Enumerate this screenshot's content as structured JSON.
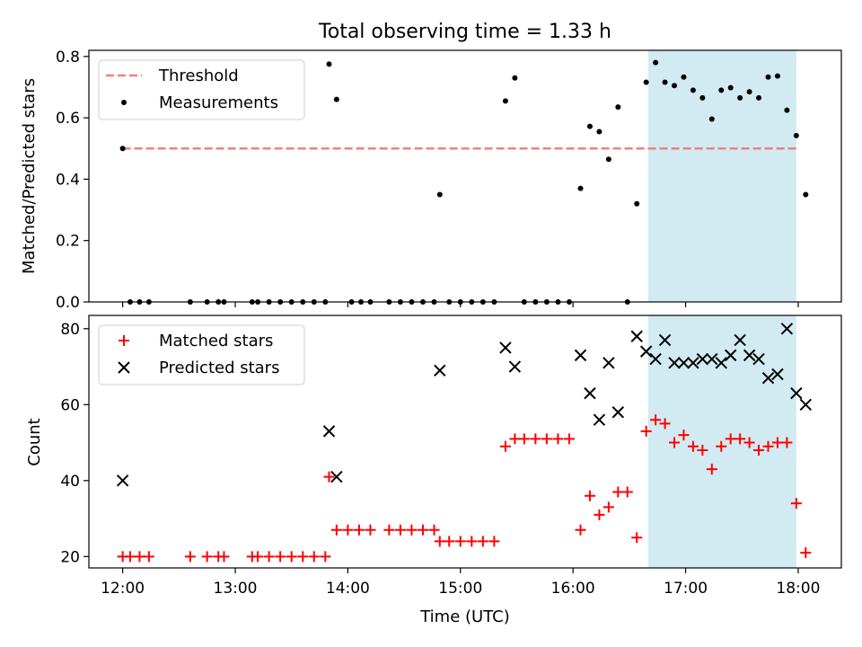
{
  "chart_data": [
    {
      "type": "scatter",
      "title": "Total observing time = 1.33 h",
      "xlabel": "",
      "ylabel": "Matched/Predicted stars",
      "xlim": [
        "11:42",
        "18:23"
      ],
      "ylim": [
        0,
        0.82
      ],
      "yticks": [
        0.0,
        0.2,
        0.4,
        0.6,
        0.8
      ],
      "ytick_labels": [
        "0.0",
        "0.2",
        "0.4",
        "0.6",
        "0.8"
      ],
      "shaded_region": {
        "x0": "16:40",
        "x1": "17:59",
        "color": "#add8e6"
      },
      "legend": {
        "position": "top-left",
        "entries": [
          "Threshold",
          "Measurements"
        ]
      },
      "series": [
        {
          "name": "Threshold",
          "kind": "dashed-line",
          "color": "#f08080",
          "points": [
            [
              "12:00",
              0.5
            ],
            [
              "18:00",
              0.5
            ]
          ]
        },
        {
          "name": "Measurements",
          "kind": "dot",
          "color": "#000000",
          "points": [
            [
              "12:00",
              0.5
            ],
            [
              "12:04",
              0.0
            ],
            [
              "12:09",
              0.0
            ],
            [
              "12:14",
              0.0
            ],
            [
              "12:36",
              0.0
            ],
            [
              "12:45",
              0.0
            ],
            [
              "12:51",
              0.0
            ],
            [
              "12:54",
              0.0
            ],
            [
              "13:09",
              0.0
            ],
            [
              "13:12",
              0.0
            ],
            [
              "13:18",
              0.0
            ],
            [
              "13:24",
              0.0
            ],
            [
              "13:30",
              0.0
            ],
            [
              "13:36",
              0.0
            ],
            [
              "13:42",
              0.0
            ],
            [
              "13:48",
              0.0
            ],
            [
              "13:50",
              0.775
            ],
            [
              "13:54",
              0.66
            ],
            [
              "14:02",
              0.0
            ],
            [
              "14:07",
              0.0
            ],
            [
              "14:12",
              0.0
            ],
            [
              "14:22",
              0.0
            ],
            [
              "14:28",
              0.0
            ],
            [
              "14:34",
              0.0
            ],
            [
              "14:40",
              0.0
            ],
            [
              "14:46",
              0.0
            ],
            [
              "14:49",
              0.35
            ],
            [
              "14:54",
              0.0
            ],
            [
              "15:00",
              0.0
            ],
            [
              "15:06",
              0.0
            ],
            [
              "15:12",
              0.0
            ],
            [
              "15:18",
              0.0
            ],
            [
              "15:24",
              0.655
            ],
            [
              "15:29",
              0.73
            ],
            [
              "15:34",
              0.0
            ],
            [
              "15:40",
              0.0
            ],
            [
              "15:46",
              0.0
            ],
            [
              "15:52",
              0.0
            ],
            [
              "15:58",
              0.0
            ],
            [
              "16:04",
              0.37
            ],
            [
              "16:09",
              0.572
            ],
            [
              "16:14",
              0.555
            ],
            [
              "16:19",
              0.465
            ],
            [
              "16:24",
              0.635
            ],
            [
              "16:29",
              0.0
            ],
            [
              "16:34",
              0.32
            ],
            [
              "16:39",
              0.716
            ],
            [
              "16:44",
              0.78
            ],
            [
              "16:49",
              0.716
            ],
            [
              "16:54",
              0.705
            ],
            [
              "16:59",
              0.733
            ],
            [
              "17:04",
              0.69
            ],
            [
              "17:09",
              0.665
            ],
            [
              "17:14",
              0.596
            ],
            [
              "17:19",
              0.69
            ],
            [
              "17:24",
              0.698
            ],
            [
              "17:29",
              0.665
            ],
            [
              "17:34",
              0.685
            ],
            [
              "17:39",
              0.665
            ],
            [
              "17:44",
              0.733
            ],
            [
              "17:49",
              0.736
            ],
            [
              "17:54",
              0.625
            ],
            [
              "17:59",
              0.542
            ],
            [
              "18:04",
              0.35
            ]
          ]
        }
      ]
    },
    {
      "type": "scatter",
      "title": "",
      "xlabel": "Time (UTC)",
      "ylabel": "Count",
      "xlim": [
        "11:42",
        "18:23"
      ],
      "ylim": [
        17,
        83.5
      ],
      "yticks": [
        20,
        40,
        60,
        80
      ],
      "ytick_labels": [
        "20",
        "40",
        "60",
        "80"
      ],
      "xticks": [
        "12:00",
        "13:00",
        "14:00",
        "15:00",
        "16:00",
        "17:00",
        "18:00"
      ],
      "xtick_labels": [
        "12:00",
        "13:00",
        "14:00",
        "15:00",
        "16:00",
        "17:00",
        "18:00"
      ],
      "shaded_region": {
        "x0": "16:40",
        "x1": "17:59",
        "color": "#add8e6"
      },
      "legend": {
        "position": "top-left",
        "entries": [
          "Matched stars",
          "Predicted stars"
        ]
      },
      "series": [
        {
          "name": "Matched stars",
          "kind": "plus",
          "color": "#ff0000",
          "points": [
            [
              "12:00",
              20
            ],
            [
              "12:04",
              20
            ],
            [
              "12:09",
              20
            ],
            [
              "12:14",
              20
            ],
            [
              "12:36",
              20
            ],
            [
              "12:45",
              20
            ],
            [
              "12:51",
              20
            ],
            [
              "12:54",
              20
            ],
            [
              "13:09",
              20
            ],
            [
              "13:12",
              20
            ],
            [
              "13:18",
              20
            ],
            [
              "13:24",
              20
            ],
            [
              "13:30",
              20
            ],
            [
              "13:36",
              20
            ],
            [
              "13:42",
              20
            ],
            [
              "13:48",
              20
            ],
            [
              "13:50",
              41
            ],
            [
              "13:54",
              27
            ],
            [
              "14:00",
              27
            ],
            [
              "14:06",
              27
            ],
            [
              "14:12",
              27
            ],
            [
              "14:22",
              27
            ],
            [
              "14:28",
              27
            ],
            [
              "14:34",
              27
            ],
            [
              "14:40",
              27
            ],
            [
              "14:46",
              27
            ],
            [
              "14:49",
              24
            ],
            [
              "14:54",
              24
            ],
            [
              "15:00",
              24
            ],
            [
              "15:06",
              24
            ],
            [
              "15:12",
              24
            ],
            [
              "15:18",
              24
            ],
            [
              "15:24",
              49
            ],
            [
              "15:29",
              51
            ],
            [
              "15:34",
              51
            ],
            [
              "15:40",
              51
            ],
            [
              "15:46",
              51
            ],
            [
              "15:52",
              51
            ],
            [
              "15:58",
              51
            ],
            [
              "16:04",
              27
            ],
            [
              "16:09",
              36
            ],
            [
              "16:14",
              31
            ],
            [
              "16:19",
              33
            ],
            [
              "16:24",
              37
            ],
            [
              "16:29",
              37
            ],
            [
              "16:34",
              25
            ],
            [
              "16:39",
              53
            ],
            [
              "16:44",
              56
            ],
            [
              "16:49",
              55
            ],
            [
              "16:54",
              50
            ],
            [
              "16:59",
              52
            ],
            [
              "17:04",
              49
            ],
            [
              "17:09",
              48
            ],
            [
              "17:14",
              43
            ],
            [
              "17:19",
              49
            ],
            [
              "17:24",
              51
            ],
            [
              "17:29",
              51
            ],
            [
              "17:34",
              50
            ],
            [
              "17:39",
              48
            ],
            [
              "17:44",
              49
            ],
            [
              "17:49",
              50
            ],
            [
              "17:54",
              50
            ],
            [
              "17:59",
              34
            ],
            [
              "18:04",
              21
            ]
          ]
        },
        {
          "name": "Predicted stars",
          "kind": "x",
          "color": "#000000",
          "points": [
            [
              "12:00",
              40
            ],
            [
              "13:50",
              53
            ],
            [
              "13:54",
              41
            ],
            [
              "14:49",
              69
            ],
            [
              "15:24",
              75
            ],
            [
              "15:29",
              70
            ],
            [
              "16:04",
              73
            ],
            [
              "16:09",
              63
            ],
            [
              "16:14",
              56
            ],
            [
              "16:19",
              71
            ],
            [
              "16:24",
              58
            ],
            [
              "16:34",
              78
            ],
            [
              "16:39",
              74
            ],
            [
              "16:44",
              72
            ],
            [
              "16:49",
              77
            ],
            [
              "16:54",
              71
            ],
            [
              "16:59",
              71
            ],
            [
              "17:04",
              71
            ],
            [
              "17:09",
              72
            ],
            [
              "17:14",
              72
            ],
            [
              "17:19",
              71
            ],
            [
              "17:24",
              73
            ],
            [
              "17:29",
              77
            ],
            [
              "17:34",
              73
            ],
            [
              "17:39",
              72
            ],
            [
              "17:44",
              67
            ],
            [
              "17:49",
              68
            ],
            [
              "17:54",
              80
            ],
            [
              "17:59",
              63
            ],
            [
              "18:04",
              60
            ]
          ]
        }
      ]
    }
  ]
}
